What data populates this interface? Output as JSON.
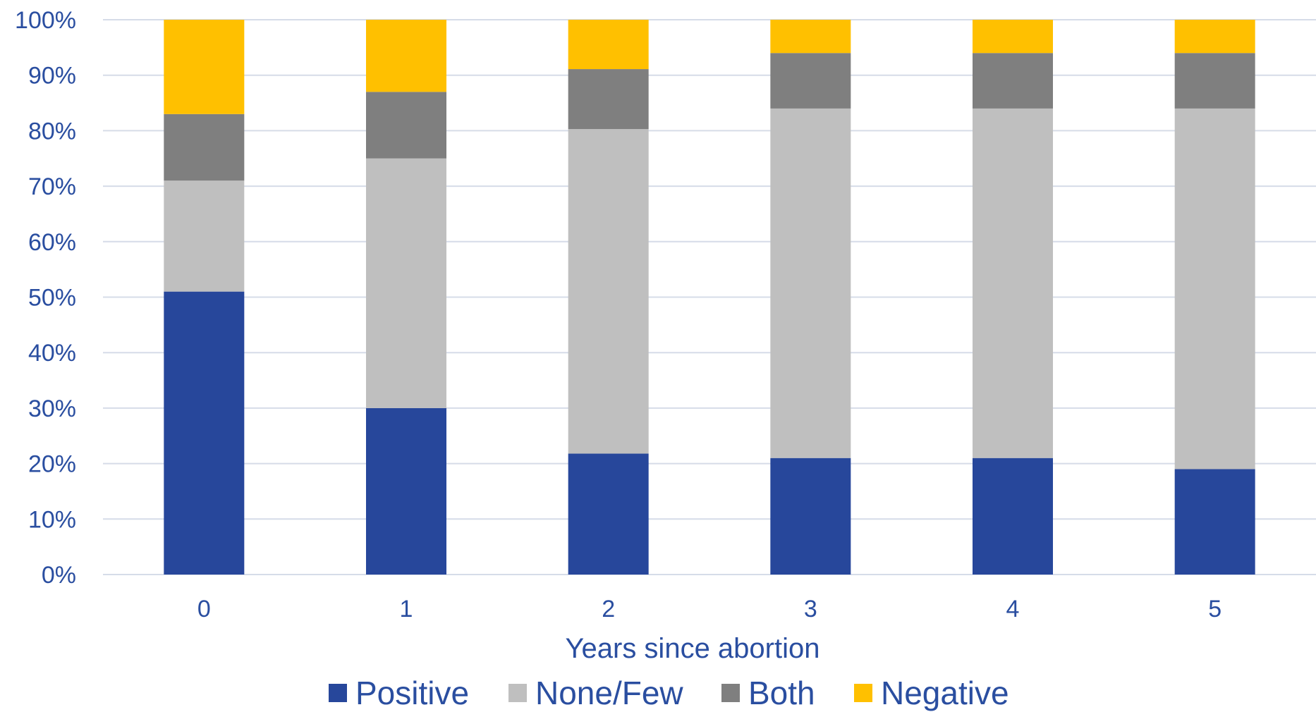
{
  "chart_data": {
    "type": "bar",
    "stacked": true,
    "categories": [
      "0",
      "1",
      "2",
      "3",
      "4",
      "5"
    ],
    "series": [
      {
        "name": "Positive",
        "color": "#27479b",
        "values": [
          51,
          30,
          21.8,
          21,
          21,
          19
        ]
      },
      {
        "name": "None/Few",
        "color": "#bfbfbf",
        "values": [
          20,
          45,
          58.5,
          63,
          63,
          65
        ]
      },
      {
        "name": "Both",
        "color": "#7f7f7f",
        "values": [
          12,
          12,
          10.8,
          10,
          10,
          10
        ]
      },
      {
        "name": "Negative",
        "color": "#ffc000",
        "values": [
          17,
          13,
          8.9,
          6,
          6,
          6
        ]
      }
    ],
    "xlabel": "Years since abortion",
    "ylabel": "",
    "ylim": [
      0,
      100
    ],
    "yticks": [
      "0%",
      "10%",
      "20%",
      "30%",
      "40%",
      "50%",
      "60%",
      "70%",
      "80%",
      "90%",
      "100%"
    ],
    "grid": true,
    "legend": "bottom",
    "gridColor": "#d6dce8",
    "textColor": "#2a4ea0"
  }
}
